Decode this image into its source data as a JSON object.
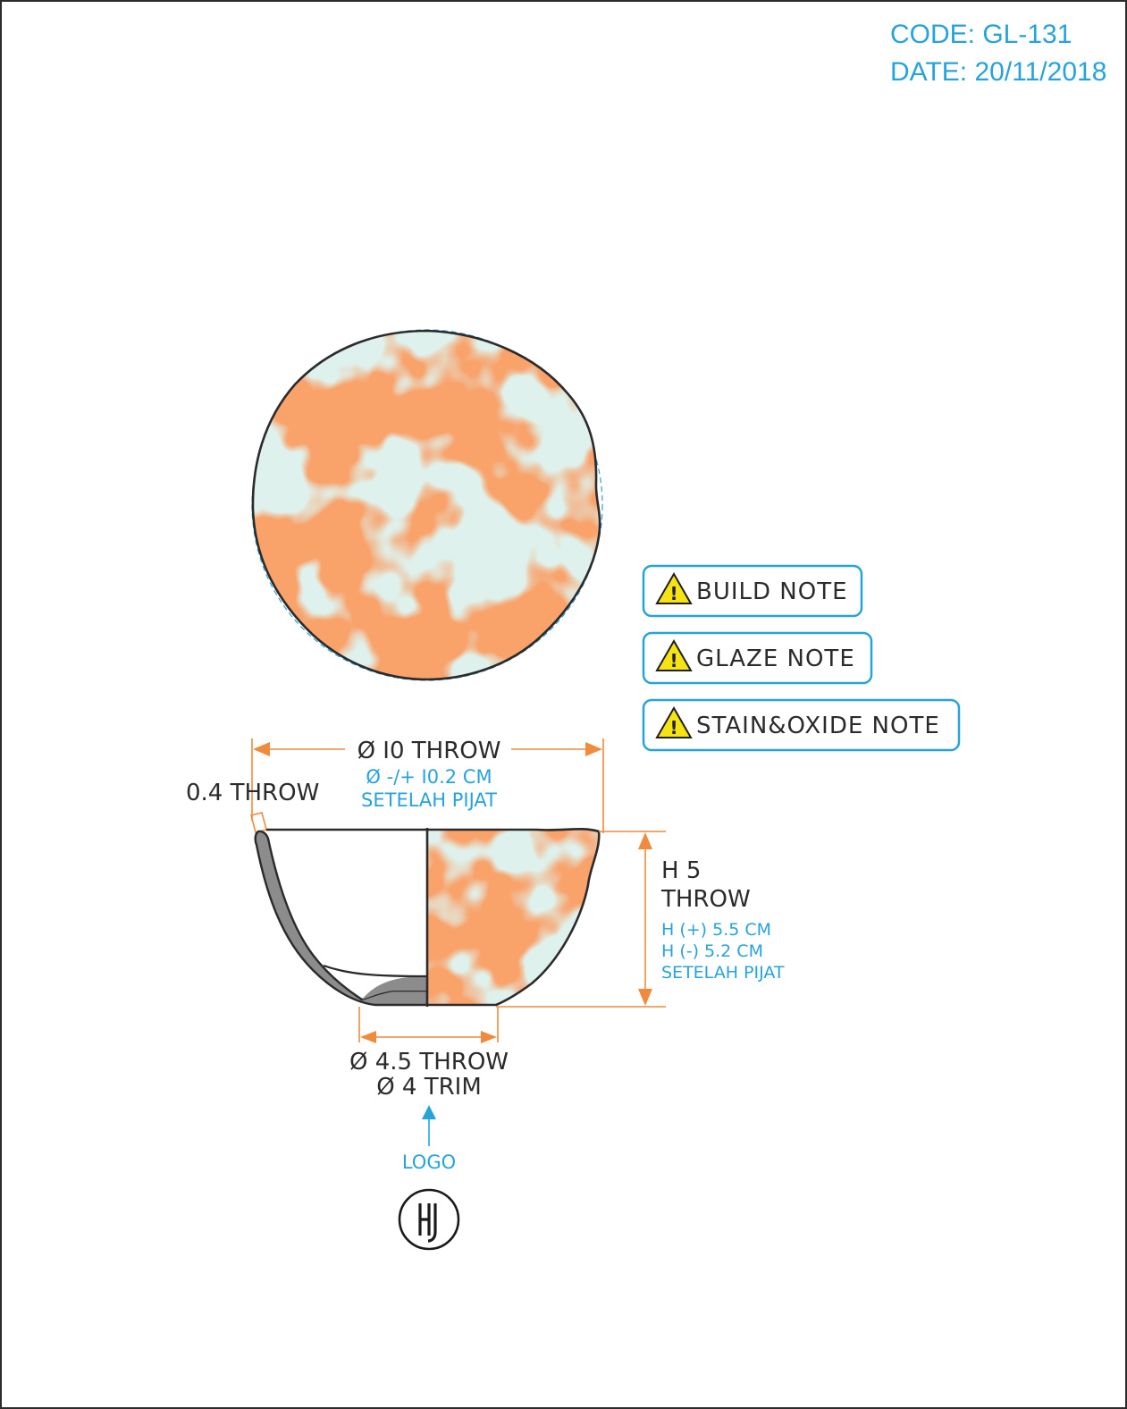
{
  "header": {
    "code": "CODE: GL-131",
    "date": "DATE: 20/11/2018"
  },
  "notes": [
    {
      "label": "BUILD NOTE",
      "icon": "warning-icon"
    },
    {
      "label": "GLAZE NOTE",
      "icon": "warning-icon"
    },
    {
      "label": "STAIN&OXIDE NOTE",
      "icon": "warning-icon"
    }
  ],
  "dimensions": {
    "diameter": {
      "main": "Ø I0 THROW",
      "sub1": "Ø -/+ I0.2 CM",
      "sub2": "SETELAH PIJAT"
    },
    "wall": {
      "label": "0.4 THROW"
    },
    "height": {
      "main1": "H 5",
      "main2": "THROW",
      "sub1": "H (+) 5.5 CM",
      "sub2": "H (-) 5.2 CM",
      "sub3": "SETELAH PIJAT"
    },
    "base": {
      "line1": "Ø 4.5 THROW",
      "line2": "Ø 4 TRIM"
    }
  },
  "logo": {
    "label": "LOGO"
  },
  "colors": {
    "accent": "#27a3dc",
    "dimension": "#f08a3c",
    "glaze_primary": "#f9a66c",
    "glaze_secondary": "#dff1ec",
    "section": "#8c8c8c"
  }
}
